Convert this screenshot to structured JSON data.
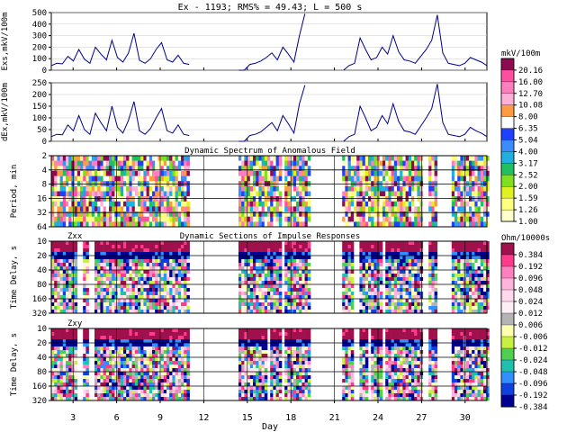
{
  "header": "Ex - 1193;  RMS% = 49.43;  L = 500 s",
  "colors": {
    "line": "#00008b",
    "blank": "#ffffff",
    "axis": "#000000"
  },
  "chart_data": [
    {
      "type": "line",
      "id": "ex",
      "ylabel": "Exs,mkV/100m",
      "ylim": [
        0,
        500
      ],
      "yticks": [
        "0",
        "100",
        "200",
        "300",
        "400",
        "500"
      ],
      "x_range": [
        1.5,
        31.5
      ],
      "gaps": [
        [
          11.0,
          14.2
        ],
        [
          19.2,
          21.5
        ]
      ],
      "series": [
        {
          "name": "Exs",
          "values": [
            40,
            60,
            55,
            120,
            80,
            180,
            95,
            60,
            200,
            140,
            90,
            260,
            110,
            70,
            150,
            320,
            85,
            60,
            100,
            180,
            240,
            90,
            70,
            130,
            60,
            50,
            0,
            0,
            0,
            0,
            0,
            0,
            0,
            0,
            0,
            0,
            50,
            60,
            80,
            110,
            150,
            90,
            200,
            140,
            70,
            300,
            490,
            60,
            90,
            50,
            0,
            0,
            0,
            0,
            40,
            60,
            280,
            180,
            90,
            110,
            200,
            140,
            300,
            160,
            90,
            80,
            60,
            120,
            180,
            260,
            480,
            150,
            60,
            50,
            40,
            60,
            110,
            90,
            70,
            40
          ]
        }
      ]
    },
    {
      "type": "line",
      "id": "dex",
      "ylabel": "dEx,mkV/100m",
      "ylim": [
        0,
        250
      ],
      "yticks": [
        "0",
        "50",
        "100",
        "150",
        "200",
        "250"
      ],
      "x_range": [
        1.5,
        31.5
      ],
      "gaps": [
        [
          11.0,
          14.2
        ],
        [
          19.2,
          21.5
        ]
      ],
      "series": [
        {
          "name": "dEx",
          "values": [
            20,
            30,
            28,
            70,
            45,
            110,
            50,
            30,
            120,
            80,
            45,
            150,
            60,
            35,
            90,
            170,
            45,
            30,
            55,
            100,
            140,
            45,
            35,
            70,
            30,
            25,
            0,
            0,
            0,
            0,
            0,
            0,
            0,
            0,
            0,
            0,
            25,
            30,
            40,
            60,
            80,
            45,
            110,
            75,
            35,
            160,
            240,
            30,
            45,
            25,
            0,
            0,
            0,
            0,
            20,
            30,
            150,
            100,
            45,
            60,
            110,
            75,
            160,
            85,
            45,
            40,
            30,
            65,
            100,
            140,
            245,
            80,
            30,
            25,
            20,
            30,
            60,
            45,
            35,
            20
          ]
        }
      ]
    },
    {
      "type": "heatmap",
      "id": "spectrum",
      "title": "Dynamic Spectrum of Anomalous Field",
      "ylabel": "Period, min",
      "yticks": [
        "2",
        "4",
        "8",
        "16",
        "32",
        "64"
      ],
      "colorbar_unit": "mkV/100m",
      "colorbar_ticks": [
        "20.16",
        "16.00",
        "12.70",
        "10.08",
        "8.00",
        "6.35",
        "5.04",
        "4.00",
        "3.17",
        "2.52",
        "2.00",
        "1.59",
        "1.26",
        "1.00"
      ],
      "data_blocks": [
        [
          1.5,
          11.0
        ],
        [
          14.2,
          17.2
        ],
        [
          17.5,
          19.2
        ],
        [
          21.5,
          27.0
        ],
        [
          27.3,
          28.0
        ],
        [
          29.0,
          31.5
        ]
      ]
    },
    {
      "type": "heatmap",
      "id": "zxx",
      "title": "Dynamic Sections of Impulse Responses",
      "label": "Zxx",
      "ylabel": "Time Delay, s",
      "yticks": [
        "10",
        "20",
        "40",
        "80",
        "160",
        "320"
      ],
      "data_blocks": [
        [
          1.5,
          3.2
        ],
        [
          3.5,
          4.0
        ],
        [
          4.3,
          11.0
        ],
        [
          14.2,
          17.2
        ],
        [
          17.5,
          19.2
        ],
        [
          21.5,
          22.3
        ],
        [
          22.7,
          24.2
        ],
        [
          24.4,
          27.0
        ],
        [
          27.3,
          28.0
        ],
        [
          29.0,
          31.5
        ]
      ]
    },
    {
      "type": "heatmap",
      "id": "zxy",
      "label": "Zxy",
      "ylabel": "Time Delay, s",
      "xlabel": "Day",
      "yticks": [
        "10",
        "20",
        "40",
        "80",
        "160",
        "320"
      ],
      "xticks": [
        "3",
        "6",
        "9",
        "12",
        "15",
        "18",
        "21",
        "24",
        "27",
        "30"
      ],
      "colorbar_unit": "Ohm/10000s",
      "colorbar_ticks": [
        "0.384",
        "0.192",
        "0.096",
        "0.048",
        "0.024",
        "0.012",
        "0.006",
        "-0.006",
        "-0.012",
        "-0.024",
        "-0.048",
        "-0.096",
        "-0.192",
        "-0.384"
      ],
      "data_blocks": [
        [
          1.5,
          3.2
        ],
        [
          3.5,
          4.0
        ],
        [
          4.3,
          11.0
        ],
        [
          14.2,
          16.2
        ],
        [
          16.4,
          17.2
        ],
        [
          17.5,
          19.2
        ],
        [
          21.5,
          22.3
        ],
        [
          22.7,
          23.3
        ],
        [
          23.5,
          24.2
        ],
        [
          24.4,
          27.0
        ],
        [
          27.3,
          28.0
        ],
        [
          29.0,
          31.5
        ]
      ]
    }
  ]
}
